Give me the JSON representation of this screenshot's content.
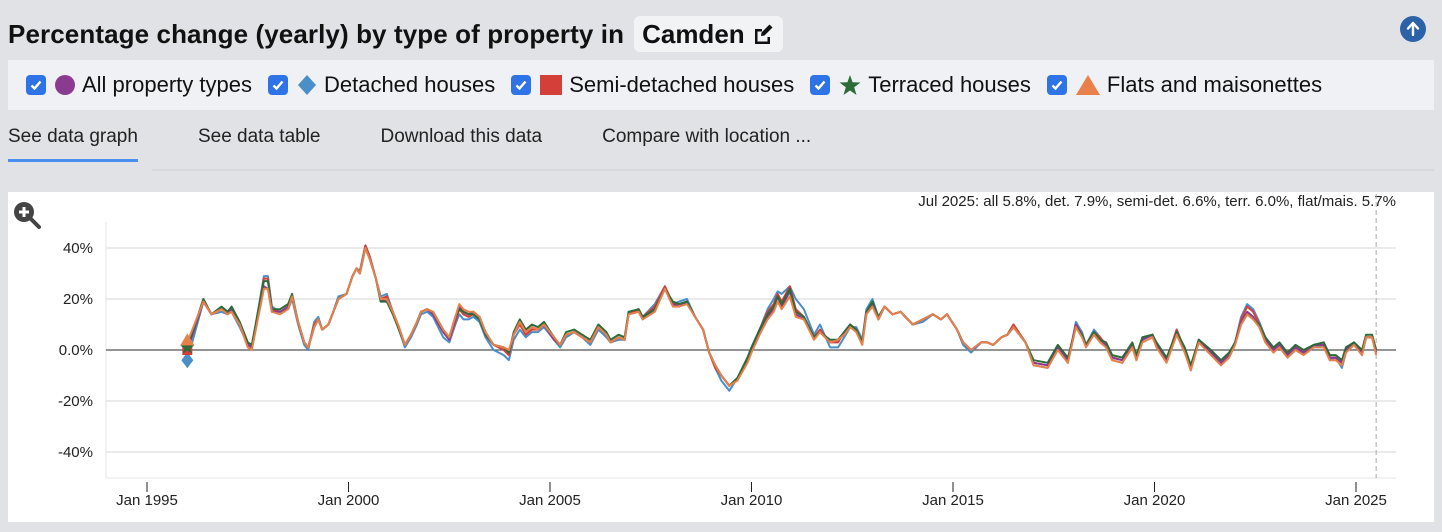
{
  "header": {
    "title": "Percentage change (yearly) by type of property in",
    "location": "Camden",
    "edit_icon": "edit-icon",
    "scroll_top_icon": "arrow-up-circle-icon"
  },
  "legend": [
    {
      "label": "All property types",
      "checked": true,
      "symbol": "circle",
      "color": "#8a3a8f"
    },
    {
      "label": "Detached houses",
      "checked": true,
      "symbol": "diamond",
      "color": "#4a8fc7"
    },
    {
      "label": "Semi-detached houses",
      "checked": true,
      "symbol": "square",
      "color": "#d53f3a"
    },
    {
      "label": "Terraced houses",
      "checked": true,
      "symbol": "star",
      "color": "#2c6b3a"
    },
    {
      "label": "Flats and maisonettes",
      "checked": true,
      "symbol": "triangle",
      "color": "#e8804a"
    }
  ],
  "tabs": [
    {
      "label": "See data graph",
      "active": true
    },
    {
      "label": "See data table",
      "active": false
    },
    {
      "label": "Download this data",
      "active": false
    },
    {
      "label": "Compare with location ...",
      "active": false
    }
  ],
  "chart_summary": "Jul 2025: all 5.8%, det. 7.9%, semi-det. 6.6%, terr. 6.0%, flat/mais. 5.7%",
  "zoom_icon": "zoom-in-icon",
  "chart_data": {
    "type": "line",
    "title": "Percentage change (yearly) by type of property in Camden",
    "xlabel": "",
    "ylabel": "",
    "xlim": [
      1994.0,
      2025.8
    ],
    "ylim": [
      -50,
      50
    ],
    "y_ticks": [
      40,
      20,
      0,
      -20,
      -40
    ],
    "y_tick_labels": [
      "40%",
      "20%",
      "0.0%",
      "-20%",
      "-40%"
    ],
    "x_ticks": [
      1995,
      2000,
      2005,
      2010,
      2015,
      2020,
      2025
    ],
    "x_tick_labels": [
      "Jan 1995",
      "Jan 2000",
      "Jan 2005",
      "Jan 2010",
      "Jan 2015",
      "Jan 2020",
      "Jan 2025"
    ],
    "grid": true,
    "current_marker": 2025.5,
    "x": [
      1996.0,
      1996.4,
      1996.6,
      1996.85,
      1997.0,
      1997.1,
      1997.3,
      1997.5,
      1997.6,
      1997.9,
      1998.0,
      1998.1,
      1998.3,
      1998.5,
      1998.6,
      1998.75,
      1998.9,
      1999.0,
      1999.15,
      1999.25,
      1999.35,
      1999.5,
      1999.6,
      1999.75,
      1999.95,
      2000.1,
      2000.2,
      2000.28,
      2000.42,
      2000.52,
      2000.68,
      2000.8,
      2000.95,
      2001.1,
      2001.25,
      2001.4,
      2001.55,
      2001.7,
      2001.8,
      2001.95,
      2002.1,
      2002.35,
      2002.5,
      2002.65,
      2002.75,
      2002.85,
      2002.98,
      2003.1,
      2003.25,
      2003.4,
      2003.6,
      2003.85,
      2003.98,
      2004.1,
      2004.25,
      2004.4,
      2004.55,
      2004.7,
      2004.85,
      2005.1,
      2005.25,
      2005.4,
      2005.6,
      2005.8,
      2006.0,
      2006.2,
      2006.4,
      2006.5,
      2006.7,
      2006.85,
      2006.95,
      2007.2,
      2007.3,
      2007.6,
      2007.85,
      2008.05,
      2008.2,
      2008.4,
      2008.6,
      2008.8,
      2008.95,
      2009.1,
      2009.25,
      2009.45,
      2009.65,
      2009.9,
      2010.0,
      2010.2,
      2010.4,
      2010.55,
      2010.65,
      2010.75,
      2010.95,
      2011.1,
      2011.3,
      2011.55,
      2011.7,
      2011.95,
      2012.15,
      2012.3,
      2012.45,
      2012.6,
      2012.75,
      2012.85,
      2013.0,
      2013.15,
      2013.3,
      2013.5,
      2013.7,
      2014.0,
      2014.25,
      2014.5,
      2014.7,
      2014.85,
      2015.1,
      2015.25,
      2015.45,
      2015.7,
      2015.85,
      2016.0,
      2016.2,
      2016.35,
      2016.5,
      2016.8,
      2017.0,
      2017.35,
      2017.6,
      2017.85,
      2018.05,
      2018.2,
      2018.3,
      2018.5,
      2018.65,
      2018.8,
      2018.95,
      2019.2,
      2019.45,
      2019.55,
      2019.7,
      2019.95,
      2020.05,
      2020.3,
      2020.55,
      2020.75,
      2020.9,
      2021.1,
      2021.4,
      2021.65,
      2021.85,
      2022.0,
      2022.15,
      2022.3,
      2022.45,
      2022.6,
      2022.75,
      2022.95,
      2023.1,
      2023.3,
      2023.5,
      2023.7,
      2023.95,
      2024.2,
      2024.35,
      2024.5,
      2024.65,
      2024.75,
      2024.95,
      2025.15,
      2025.25,
      2025.4,
      2025.5
    ],
    "series": [
      {
        "name": "All property types",
        "color": "#8a3a8f",
        "values": [
          0,
          19,
          14,
          16.5,
          15,
          16,
          10,
          2,
          1,
          25,
          24,
          15,
          15,
          17,
          21,
          11,
          3,
          1,
          9,
          12,
          8,
          10,
          14,
          20,
          22,
          29,
          32,
          30,
          40,
          36,
          28,
          19,
          20,
          15,
          9,
          2,
          6,
          11,
          15,
          16,
          14,
          7,
          4,
          12,
          17,
          15,
          14,
          15,
          13,
          7,
          2,
          1,
          -1,
          6,
          11,
          7,
          9,
          8,
          10,
          4,
          2,
          6,
          7,
          5,
          3,
          9,
          6,
          3,
          5,
          4,
          14,
          15,
          12,
          16,
          24,
          18,
          17,
          19,
          13,
          8,
          -1,
          -6,
          -10,
          -14,
          -11,
          -4,
          0,
          7,
          13,
          16,
          21,
          17,
          23,
          14,
          12,
          5,
          7,
          3,
          4,
          7,
          10,
          7,
          3,
          14,
          18,
          12,
          17,
          14,
          15,
          10,
          12,
          14,
          12,
          14,
          8,
          3,
          0,
          3,
          3,
          2,
          5,
          6,
          9,
          3,
          -5,
          -6,
          1,
          -4,
          10,
          6,
          2,
          7,
          4,
          2,
          -3,
          -4,
          2,
          -3,
          4,
          6,
          2,
          -4,
          7,
          0,
          -7,
          4,
          -1,
          -5,
          -2,
          3,
          11,
          15,
          13,
          9,
          4,
          0,
          2,
          -2,
          1,
          -1,
          2,
          2,
          -3,
          -3,
          -5,
          0,
          3,
          -1,
          5,
          5,
          -1,
          -1,
          5.8
        ]
      },
      {
        "name": "Detached houses",
        "color": "#4a8fc7",
        "values": [
          -4,
          19,
          14,
          15,
          14,
          15,
          9,
          2,
          1,
          29,
          29,
          17,
          15,
          16,
          20,
          10,
          2,
          0,
          11,
          13,
          8,
          10,
          14,
          21,
          22,
          29,
          32,
          31,
          41,
          37,
          28,
          21,
          22,
          15,
          8,
          1,
          5,
          10,
          14,
          15,
          13,
          5,
          3,
          10,
          14,
          12,
          12,
          13,
          11,
          5,
          0,
          -2,
          -4,
          4,
          8,
          5,
          7,
          7,
          9,
          4,
          1,
          5,
          7,
          5,
          2,
          8,
          5,
          3,
          4,
          4,
          15,
          15,
          13,
          18,
          25,
          18,
          19,
          20,
          13,
          8,
          -1,
          -7,
          -12,
          -16,
          -11,
          -3,
          1,
          8,
          16,
          20,
          23,
          22,
          25,
          20,
          16,
          6,
          10,
          1,
          1,
          5,
          9,
          9,
          4,
          16,
          20,
          13,
          17,
          14,
          15,
          10,
          11,
          14,
          12,
          14,
          8,
          2,
          -1,
          3,
          3,
          2,
          5,
          6,
          10,
          3,
          -6,
          -7,
          1,
          -5,
          11,
          7,
          2,
          8,
          5,
          1,
          -4,
          -5,
          2,
          -4,
          4,
          6,
          2,
          -4,
          8,
          0,
          -8,
          4,
          -1,
          -6,
          -2,
          3,
          13,
          18,
          16,
          11,
          5,
          0,
          2,
          -3,
          0,
          -1,
          1,
          2,
          -4,
          -3,
          -7,
          -1,
          3,
          -2,
          5,
          5,
          -1,
          -1,
          7.9
        ]
      },
      {
        "name": "Semi-detached houses",
        "color": "#d53f3a",
        "values": [
          0,
          19,
          14,
          16,
          15,
          16,
          10,
          2,
          1,
          28,
          28,
          16,
          15,
          16,
          21,
          11,
          3,
          1,
          10,
          12,
          8,
          10,
          14,
          20,
          22,
          29,
          32,
          30,
          41,
          37,
          28,
          20,
          21,
          15,
          9,
          2,
          6,
          11,
          15,
          16,
          14,
          7,
          4,
          11,
          16,
          14,
          13,
          14,
          12,
          6,
          2,
          0,
          -2,
          6,
          10,
          6,
          8,
          8,
          10,
          5,
          2,
          6,
          7,
          5,
          3,
          9,
          6,
          3,
          5,
          4,
          14,
          16,
          13,
          17,
          25,
          18,
          18,
          19,
          13,
          8,
          -1,
          -7,
          -10,
          -14,
          -11,
          -4,
          0,
          8,
          15,
          18,
          22,
          19,
          25,
          16,
          13,
          5,
          8,
          3,
          3,
          7,
          10,
          8,
          3,
          15,
          18,
          12,
          17,
          14,
          15,
          10,
          12,
          14,
          12,
          14,
          8,
          3,
          0,
          3,
          3,
          2,
          5,
          6,
          10,
          3,
          -5,
          -6,
          1,
          -4,
          10,
          6,
          2,
          7,
          5,
          2,
          -3,
          -4,
          2,
          -3,
          5,
          6,
          2,
          -4,
          8,
          0,
          -7,
          4,
          -1,
          -5,
          -2,
          3,
          12,
          17,
          15,
          10,
          5,
          0,
          2,
          -2,
          1,
          -1,
          2,
          2,
          -3,
          -3,
          -6,
          0,
          3,
          -1,
          5,
          5,
          -1,
          -1,
          6.6
        ]
      },
      {
        "name": "Terraced houses",
        "color": "#2c6b3a",
        "values": [
          1,
          20,
          14,
          17,
          15,
          17,
          11,
          3,
          2,
          27,
          27,
          16,
          16,
          18,
          22,
          11,
          3,
          1,
          9,
          12,
          8,
          10,
          14,
          20,
          22,
          29,
          32,
          30,
          40,
          36,
          28,
          19,
          19,
          14,
          8,
          2,
          6,
          11,
          15,
          16,
          15,
          8,
          5,
          13,
          16,
          15,
          14,
          14,
          12,
          6,
          2,
          1,
          -1,
          7,
          12,
          8,
          10,
          9,
          11,
          5,
          2,
          7,
          8,
          6,
          4,
          10,
          7,
          4,
          6,
          5,
          15,
          16,
          13,
          16,
          24,
          19,
          18,
          19,
          13,
          8,
          -1,
          -6,
          -10,
          -14,
          -11,
          -3,
          1,
          8,
          14,
          17,
          21,
          18,
          24,
          15,
          13,
          5,
          7,
          4,
          4,
          7,
          10,
          8,
          3,
          15,
          19,
          13,
          17,
          14,
          15,
          10,
          12,
          14,
          12,
          14,
          8,
          3,
          0,
          3,
          3,
          2,
          5,
          6,
          9,
          3,
          -4,
          -5,
          2,
          -3,
          9,
          6,
          2,
          7,
          4,
          3,
          -2,
          -3,
          3,
          -2,
          5,
          6,
          3,
          -3,
          7,
          1,
          -6,
          4,
          0,
          -4,
          -1,
          3,
          10,
          14,
          12,
          10,
          5,
          1,
          3,
          -1,
          2,
          0,
          2,
          3,
          -2,
          -2,
          -4,
          1,
          3,
          0,
          6,
          6,
          0,
          0,
          6.0
        ]
      },
      {
        "name": "Flats and maisonettes",
        "color": "#e8804a",
        "values": [
          3,
          19,
          14,
          16,
          14,
          15,
          10,
          1,
          0,
          24,
          24,
          15,
          14,
          16,
          21,
          11,
          3,
          1,
          9,
          12,
          8,
          10,
          14,
          20,
          22,
          29,
          32,
          30,
          40,
          36,
          28,
          20,
          20,
          15,
          9,
          2,
          6,
          11,
          15,
          16,
          15,
          8,
          5,
          13,
          18,
          16,
          15,
          15,
          13,
          7,
          2,
          1,
          0,
          6,
          11,
          7,
          9,
          8,
          10,
          5,
          2,
          6,
          7,
          5,
          3,
          9,
          6,
          3,
          5,
          4,
          14,
          15,
          12,
          15,
          24,
          17,
          17,
          18,
          13,
          8,
          -1,
          -6,
          -10,
          -14,
          -12,
          -5,
          -1,
          6,
          12,
          15,
          19,
          16,
          21,
          13,
          12,
          4,
          7,
          3,
          4,
          6,
          9,
          7,
          2,
          14,
          17,
          12,
          17,
          14,
          15,
          10,
          12,
          14,
          12,
          14,
          8,
          3,
          0,
          3,
          3,
          2,
          5,
          6,
          9,
          3,
          -6,
          -7,
          0,
          -5,
          9,
          5,
          1,
          6,
          3,
          1,
          -4,
          -5,
          1,
          -4,
          3,
          5,
          1,
          -5,
          6,
          -1,
          -8,
          3,
          -2,
          -6,
          -3,
          2,
          10,
          14,
          12,
          9,
          3,
          -1,
          1,
          -3,
          0,
          -2,
          1,
          1,
          -4,
          -4,
          -6,
          -1,
          2,
          -2,
          5,
          5,
          -2,
          -2,
          5.7
        ]
      }
    ]
  }
}
